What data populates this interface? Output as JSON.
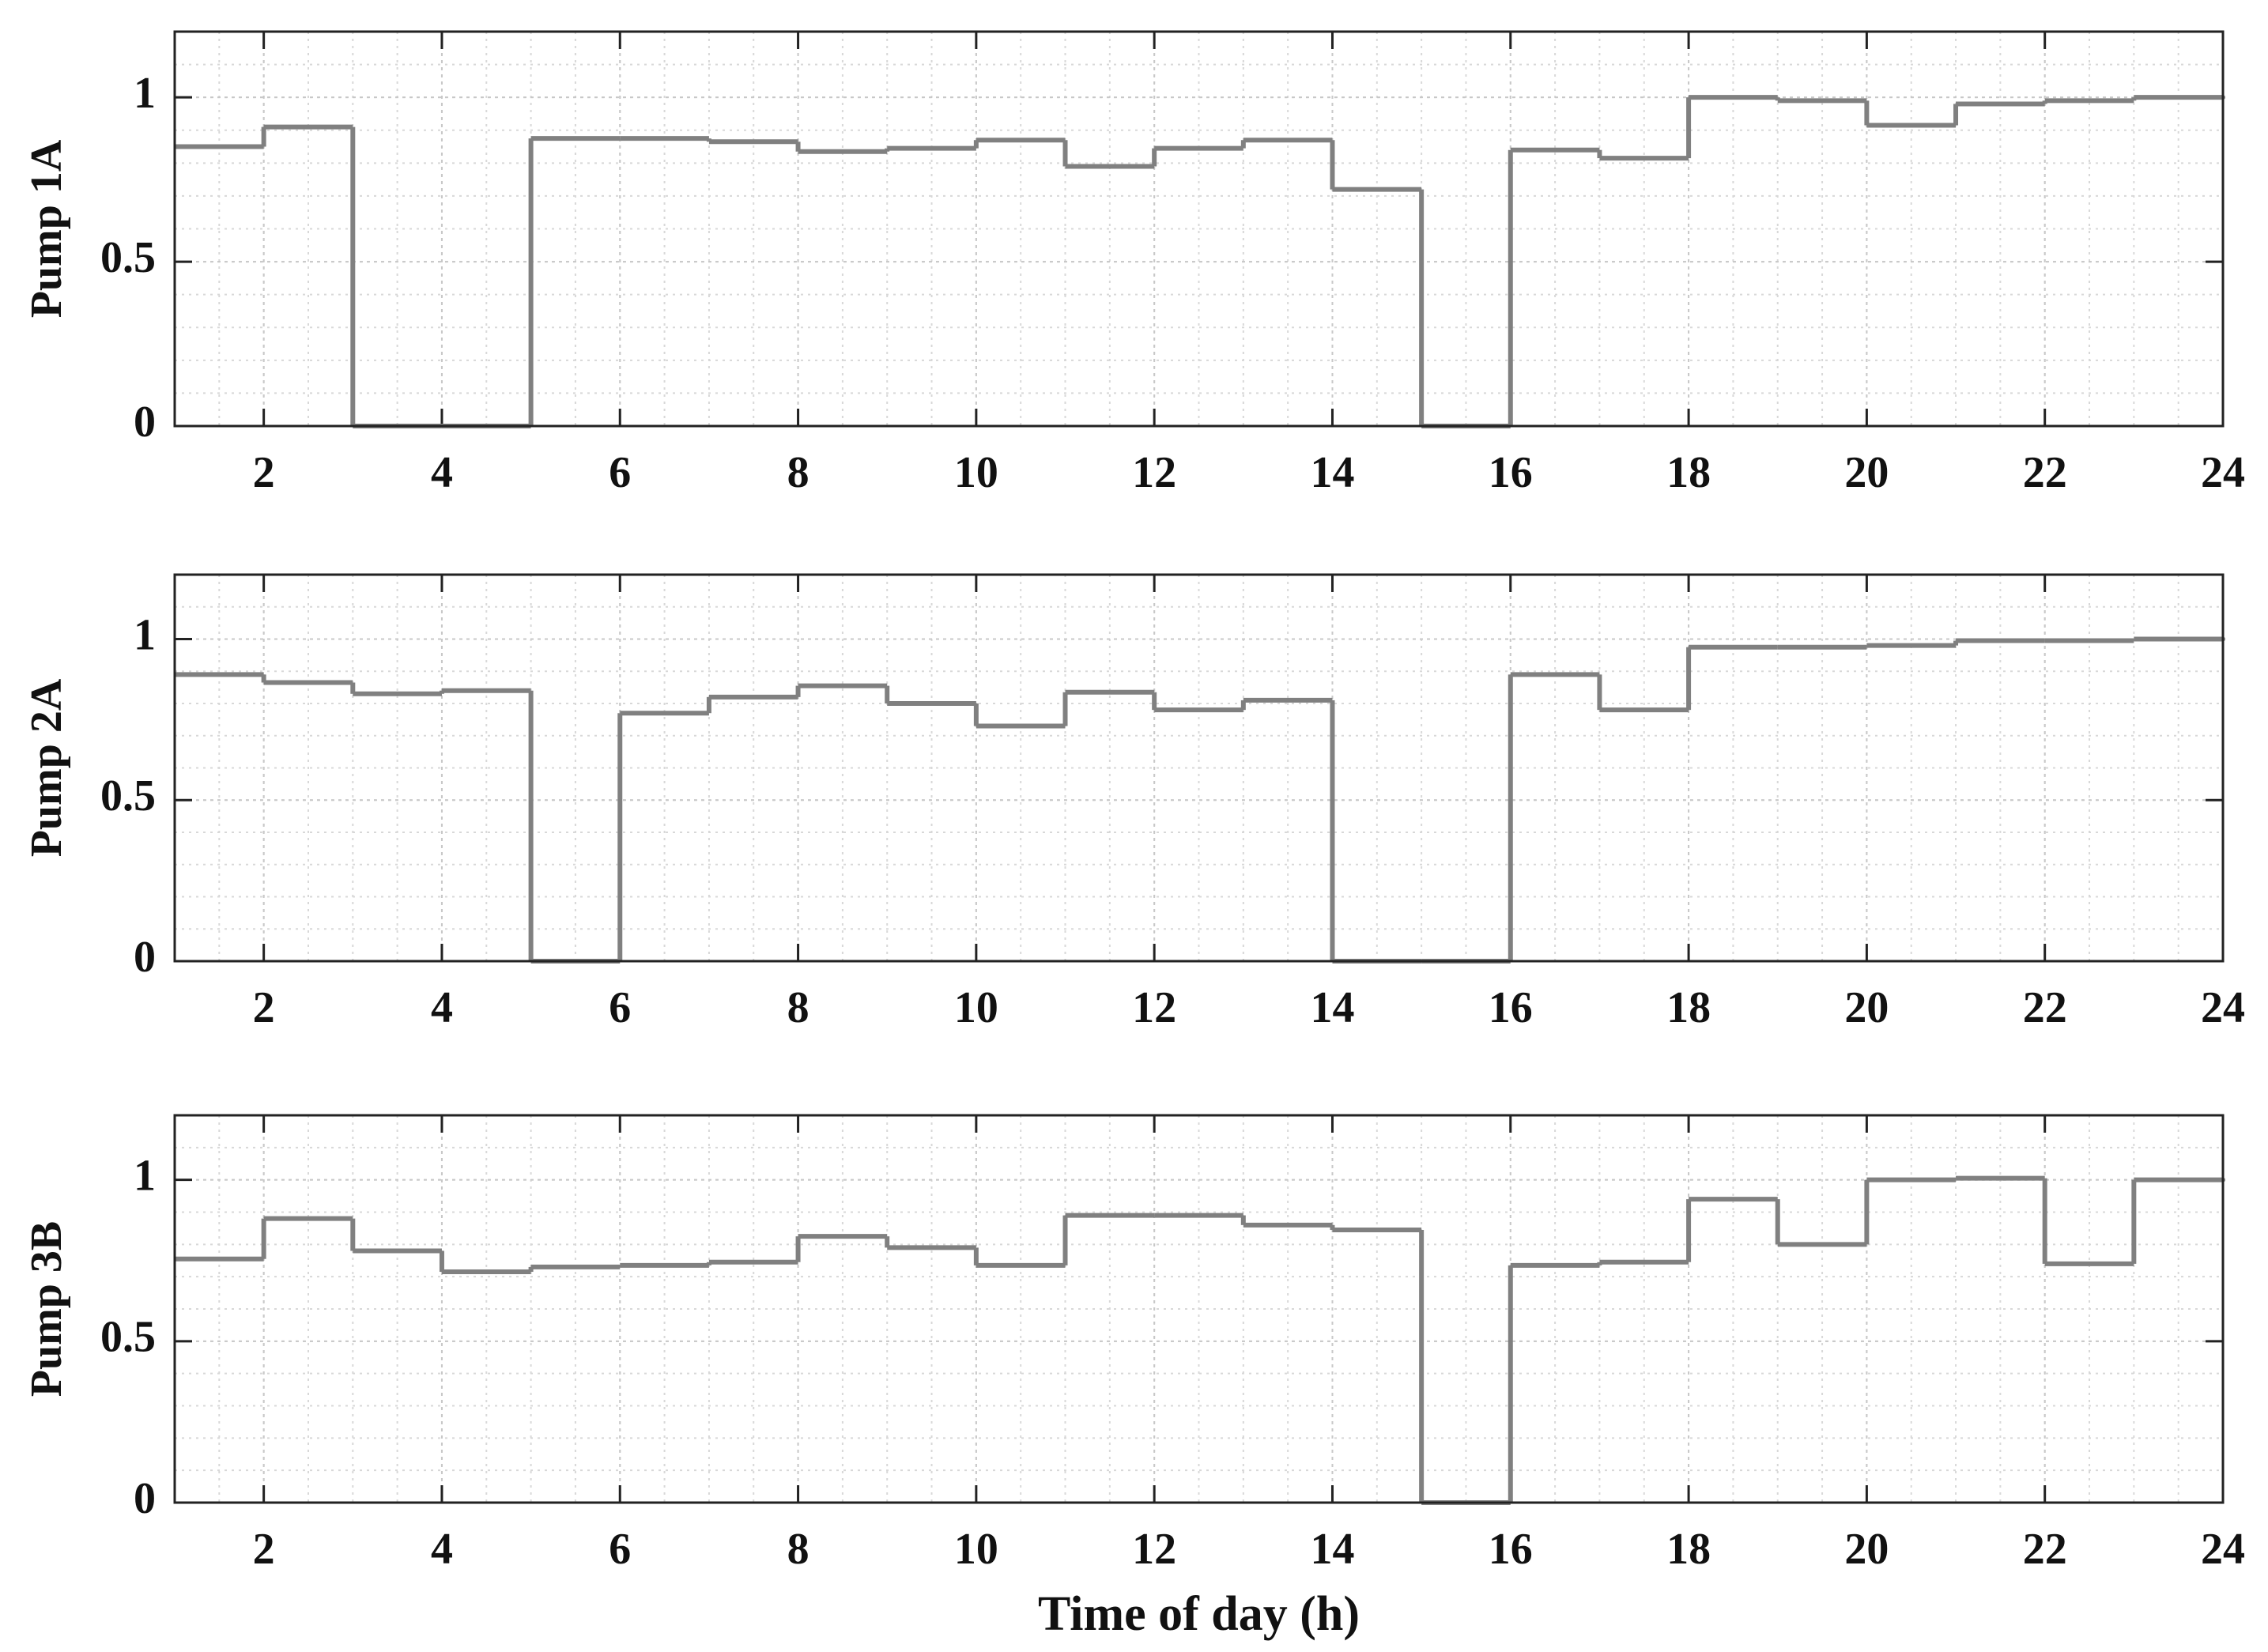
{
  "chart_data": [
    {
      "type": "line",
      "step": "post",
      "ylabel": "Pump 1A",
      "color": "#808080",
      "x": [
        1,
        2,
        3,
        4,
        5,
        6,
        7,
        8,
        9,
        10,
        11,
        12,
        13,
        14,
        15,
        16,
        17,
        18,
        19,
        20,
        21,
        22,
        23,
        24
      ],
      "values": [
        0.85,
        0.91,
        0,
        0,
        0.875,
        0.875,
        0.865,
        0.835,
        0.845,
        0.87,
        0.79,
        0.845,
        0.87,
        0.72,
        0,
        0.84,
        0.815,
        1.0,
        0.99,
        0.915,
        0.98,
        0.99,
        1.0,
        1.0
      ],
      "xlim": [
        1,
        24
      ],
      "xticks": [
        2,
        4,
        6,
        8,
        10,
        12,
        14,
        16,
        18,
        20,
        22,
        24
      ],
      "ylim": [
        0,
        1.2
      ],
      "yticks": [
        0,
        0.5,
        1
      ],
      "grid": true,
      "minor_grid": true
    },
    {
      "type": "line",
      "step": "post",
      "ylabel": "Pump 2A",
      "color": "#808080",
      "x": [
        1,
        2,
        3,
        4,
        5,
        6,
        7,
        8,
        9,
        10,
        11,
        12,
        13,
        14,
        15,
        16,
        17,
        18,
        19,
        20,
        21,
        22,
        23,
        24
      ],
      "values": [
        0.89,
        0.865,
        0.83,
        0.84,
        0,
        0.77,
        0.82,
        0.855,
        0.8,
        0.73,
        0.835,
        0.78,
        0.81,
        0,
        0,
        0.89,
        0.78,
        0.975,
        0.975,
        0.98,
        0.995,
        0.995,
        1.0,
        1.0
      ],
      "xlim": [
        1,
        24
      ],
      "xticks": [
        2,
        4,
        6,
        8,
        10,
        12,
        14,
        16,
        18,
        20,
        22,
        24
      ],
      "ylim": [
        0,
        1.2
      ],
      "yticks": [
        0,
        0.5,
        1
      ],
      "grid": true,
      "minor_grid": true
    },
    {
      "type": "line",
      "step": "post",
      "ylabel": "Pump 3B",
      "xlabel": "Time of day (h)",
      "color": "#808080",
      "x": [
        1,
        2,
        3,
        4,
        5,
        6,
        7,
        8,
        9,
        10,
        11,
        12,
        13,
        14,
        15,
        16,
        17,
        18,
        19,
        20,
        21,
        22,
        23,
        24
      ],
      "values": [
        0.755,
        0.88,
        0.78,
        0.715,
        0.73,
        0.735,
        0.745,
        0.825,
        0.79,
        0.735,
        0.89,
        0.89,
        0.86,
        0.845,
        0,
        0.735,
        0.745,
        0.94,
        0.8,
        1.0,
        1.005,
        0.74,
        1.0,
        1.0
      ],
      "xlim": [
        1,
        24
      ],
      "xticks": [
        2,
        4,
        6,
        8,
        10,
        12,
        14,
        16,
        18,
        20,
        22,
        24
      ],
      "ylim": [
        0,
        1.2
      ],
      "yticks": [
        0,
        0.5,
        1
      ],
      "grid": true,
      "minor_grid": true
    }
  ]
}
